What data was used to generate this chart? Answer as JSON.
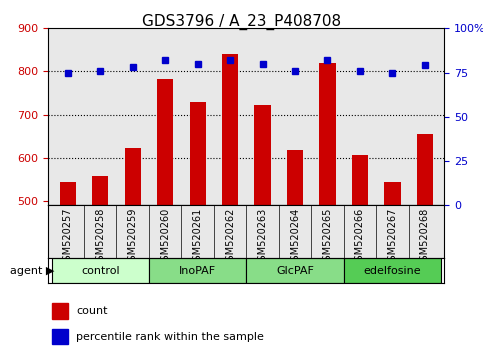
{
  "title": "GDS3796 / A_23_P408708",
  "samples": [
    "GSM520257",
    "GSM520258",
    "GSM520259",
    "GSM520260",
    "GSM520261",
    "GSM520262",
    "GSM520263",
    "GSM520264",
    "GSM520265",
    "GSM520266",
    "GSM520267",
    "GSM520268"
  ],
  "counts": [
    543,
    558,
    622,
    782,
    730,
    840,
    723,
    617,
    820,
    607,
    543,
    655
  ],
  "percentiles": [
    75,
    76,
    78,
    82,
    80,
    82,
    80,
    76,
    82,
    76,
    75,
    79
  ],
  "bar_color": "#cc0000",
  "dot_color": "#0000cc",
  "ylim_left": [
    490,
    900
  ],
  "ylim_right": [
    0,
    100
  ],
  "yticks_left": [
    500,
    600,
    700,
    800,
    900
  ],
  "yticks_right": [
    0,
    25,
    50,
    75,
    100
  ],
  "yticklabels_right": [
    "0",
    "25",
    "50",
    "75",
    "100%"
  ],
  "groups": [
    {
      "label": "control",
      "indices": [
        0,
        1,
        2
      ],
      "color": "#ccffcc"
    },
    {
      "label": "InoPAF",
      "indices": [
        3,
        4,
        5
      ],
      "color": "#66dd66"
    },
    {
      "label": "GlcPAF",
      "indices": [
        6,
        7,
        8
      ],
      "color": "#66dd66"
    },
    {
      "label": "edelfosine",
      "indices": [
        9,
        10,
        11
      ],
      "color": "#44cc44"
    }
  ],
  "group_colors": [
    "#ccffcc",
    "#66cc66",
    "#66cc66",
    "#44bb44"
  ],
  "legend_count_color": "#cc0000",
  "legend_dot_color": "#0000cc",
  "background_color": "#ffffff",
  "plot_bg_color": "#e8e8e8",
  "dotted_line_color": "#000000",
  "tick_color_left": "#cc0000",
  "tick_color_right": "#0000cc"
}
